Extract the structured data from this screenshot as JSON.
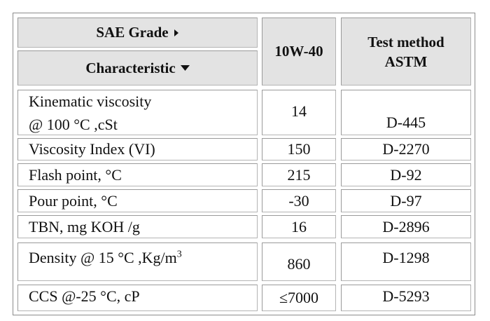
{
  "header": {
    "sae_grade": "SAE Grade",
    "characteristic": "Characteristic",
    "grade": "10W-40",
    "test_method": "Test method ASTM"
  },
  "rows": [
    {
      "characteristic": [
        "Kinematic viscosity",
        "@ 100 °C ,cSt"
      ],
      "value": 14,
      "method": "D-445"
    },
    {
      "characteristic": "Viscosity Index (VI)",
      "value": 150,
      "method": "D-2270"
    },
    {
      "characteristic": "Flash point, °C",
      "value": 215,
      "method": "D-92"
    },
    {
      "characteristic": "Pour point, °C",
      "value": -30,
      "method": "D-97"
    },
    {
      "characteristic": "TBN, mg KOH /g",
      "value": 16,
      "method": "D-2896"
    },
    {
      "characteristic": "Density @ 15 °C ,Kg/m",
      "superscript": "3",
      "value": 860,
      "method": "D-1298"
    },
    {
      "characteristic": "CCS @-25 °C, cP",
      "value": "≤7000",
      "method": "D-5293"
    }
  ]
}
